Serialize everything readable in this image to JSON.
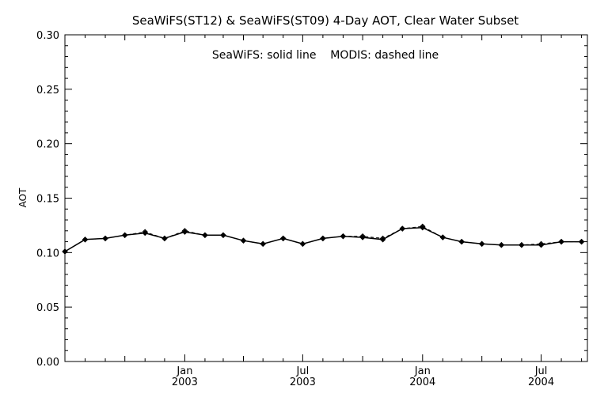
{
  "chart_data": {
    "type": "line",
    "title": "SeaWiFS(ST12) & SeaWiFS(ST09) 4-Day AOT, Clear Water Subset",
    "annotation": "SeaWiFS: solid line    MODIS: dashed line",
    "ylabel": "AOT",
    "xlabel": "",
    "ylim": [
      0.0,
      0.3
    ],
    "xlim": [
      "2002-07-01",
      "2004-09-10"
    ],
    "yticks": [
      "0.00",
      "0.05",
      "0.10",
      "0.15",
      "0.20",
      "0.25",
      "0.30"
    ],
    "xticks": [
      {
        "date": "2003-01-01",
        "month": "Jan",
        "year": "2003"
      },
      {
        "date": "2003-07-01",
        "month": "Jul",
        "year": "2003"
      },
      {
        "date": "2004-01-01",
        "month": "Jan",
        "year": "2004"
      },
      {
        "date": "2004-07-01",
        "month": "Jul",
        "year": "2004"
      }
    ],
    "grid": false,
    "x": [
      "2002-07-01",
      "2002-08-01",
      "2002-09-01",
      "2002-10-01",
      "2002-11-01",
      "2002-12-01",
      "2003-01-01",
      "2003-02-01",
      "2003-03-01",
      "2003-04-01",
      "2003-05-01",
      "2003-06-01",
      "2003-07-01",
      "2003-08-01",
      "2003-09-01",
      "2003-10-01",
      "2003-11-01",
      "2003-12-01",
      "2004-01-01",
      "2004-02-01",
      "2004-03-01",
      "2004-04-01",
      "2004-05-01",
      "2004-06-01",
      "2004-07-01",
      "2004-08-01",
      "2004-09-01"
    ],
    "series": [
      {
        "style": "solid",
        "values": [
          0.101,
          0.112,
          0.113,
          0.116,
          0.118,
          0.113,
          0.119,
          0.116,
          0.116,
          0.111,
          0.108,
          0.113,
          0.108,
          0.113,
          0.115,
          0.114,
          0.112,
          0.122,
          0.123,
          0.114,
          0.11,
          0.108,
          0.107,
          0.107,
          0.107,
          0.11,
          0.11
        ]
      },
      {
        "style": "dashed",
        "values": [
          0.101,
          0.112,
          0.113,
          0.116,
          0.119,
          0.113,
          0.12,
          0.116,
          0.116,
          0.111,
          0.108,
          0.113,
          0.108,
          0.113,
          0.115,
          0.115,
          0.113,
          0.122,
          0.124,
          0.114,
          0.11,
          0.108,
          0.107,
          0.107,
          0.108,
          0.11,
          0.11
        ]
      }
    ]
  }
}
